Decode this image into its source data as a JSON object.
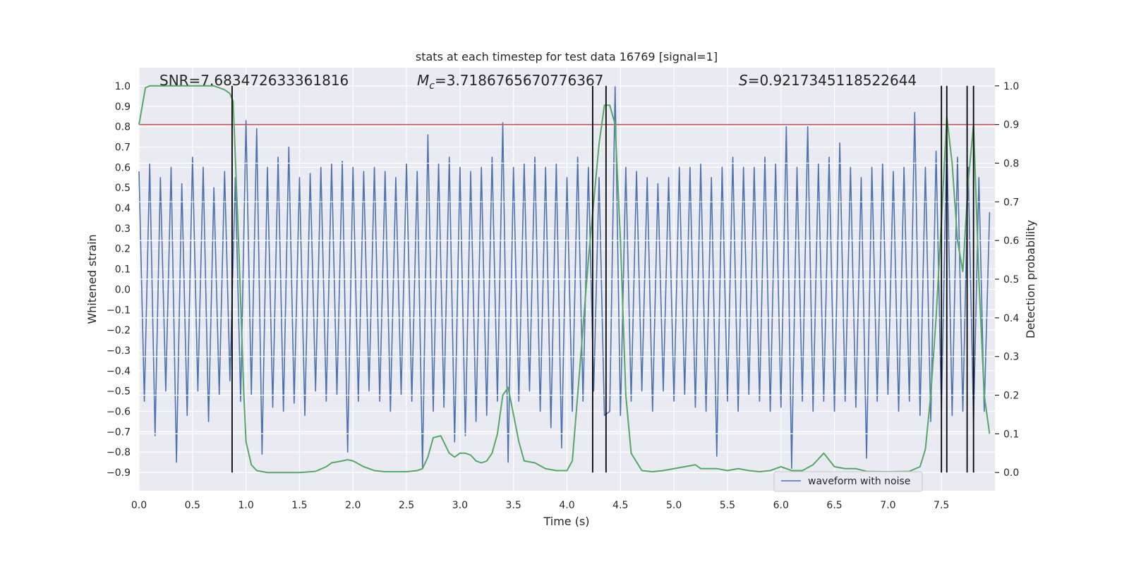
{
  "chart_data": {
    "type": "line",
    "title": "stats at each timestep for test data 16769 [signal=1]",
    "xlabel": "Time (s)",
    "ylabel": "Whitened strain",
    "y2label": "Detection probability",
    "xlim": [
      0,
      8
    ],
    "ylim": [
      -0.99,
      1.09
    ],
    "y2lim": [
      -0.047,
      1.047
    ],
    "xticks": [
      {
        "value": 0,
        "label": "0.0"
      },
      {
        "value": 0.5,
        "label": "0.5"
      },
      {
        "value": 1,
        "label": "1.0"
      },
      {
        "value": 1.5,
        "label": "1.5"
      },
      {
        "value": 2,
        "label": "2.0"
      },
      {
        "value": 2.5,
        "label": "2.5"
      },
      {
        "value": 3,
        "label": "3.0"
      },
      {
        "value": 3.5,
        "label": "3.5"
      },
      {
        "value": 4,
        "label": "4.0"
      },
      {
        "value": 4.5,
        "label": "4.5"
      },
      {
        "value": 5,
        "label": "5.0"
      },
      {
        "value": 5.5,
        "label": "5.5"
      },
      {
        "value": 6,
        "label": "6.0"
      },
      {
        "value": 6.5,
        "label": "6.5"
      },
      {
        "value": 7,
        "label": "7.0"
      },
      {
        "value": 7.5,
        "label": "7.5"
      }
    ],
    "yticks": [
      {
        "value": -0.9,
        "label": "−0.9"
      },
      {
        "value": -0.8,
        "label": "−0.8"
      },
      {
        "value": -0.7,
        "label": "−0.7"
      },
      {
        "value": -0.6,
        "label": "−0.6"
      },
      {
        "value": -0.5,
        "label": "−0.5"
      },
      {
        "value": -0.4,
        "label": "−0.4"
      },
      {
        "value": -0.3,
        "label": "−0.3"
      },
      {
        "value": -0.2,
        "label": "−0.2"
      },
      {
        "value": -0.1,
        "label": "−0.1"
      },
      {
        "value": 0,
        "label": "0.0"
      },
      {
        "value": 0.1,
        "label": "0.1"
      },
      {
        "value": 0.2,
        "label": "0.2"
      },
      {
        "value": 0.3,
        "label": "0.3"
      },
      {
        "value": 0.4,
        "label": "0.4"
      },
      {
        "value": 0.5,
        "label": "0.5"
      },
      {
        "value": 0.6,
        "label": "0.6"
      },
      {
        "value": 0.7,
        "label": "0.7"
      },
      {
        "value": 0.8,
        "label": "0.8"
      },
      {
        "value": 0.9,
        "label": "0.9"
      },
      {
        "value": 1,
        "label": "1.0"
      }
    ],
    "y2ticks": [
      {
        "value": 0,
        "label": "0.0"
      },
      {
        "value": 0.1,
        "label": "0.1"
      },
      {
        "value": 0.2,
        "label": "0.2"
      },
      {
        "value": 0.3,
        "label": "0.3"
      },
      {
        "value": 0.4,
        "label": "0.4"
      },
      {
        "value": 0.5,
        "label": "0.5"
      },
      {
        "value": 0.6,
        "label": "0.6"
      },
      {
        "value": 0.7,
        "label": "0.7"
      },
      {
        "value": 0.8,
        "label": "0.8"
      },
      {
        "value": 0.9,
        "label": "0.9"
      },
      {
        "value": 1,
        "label": "1.0"
      }
    ],
    "grid": true,
    "legend": "lower right",
    "annotations": [
      {
        "text": "SNR=7.683472633361816"
      },
      {
        "symbol": "M",
        "subscript": "c",
        "text": "=3.7186765670776367"
      },
      {
        "symbol": "S",
        "text": "=0.9217345118522644"
      }
    ],
    "series": [
      {
        "name": "waveform with noise",
        "color": "#4c72b0",
        "x": [
          0,
          0.05,
          0.1,
          0.15,
          0.2,
          0.25,
          0.3,
          0.35,
          0.4,
          0.45,
          0.5,
          0.55,
          0.6,
          0.65,
          0.7,
          0.75,
          0.8,
          0.85,
          0.9,
          0.95,
          1,
          1.05,
          1.1,
          1.15,
          1.2,
          1.25,
          1.3,
          1.35,
          1.4,
          1.45,
          1.5,
          1.55,
          1.6,
          1.65,
          1.7,
          1.75,
          1.8,
          1.85,
          1.9,
          1.95,
          2,
          2.05,
          2.1,
          2.15,
          2.2,
          2.25,
          2.3,
          2.35,
          2.4,
          2.45,
          2.5,
          2.55,
          2.6,
          2.65,
          2.7,
          2.75,
          2.8,
          2.85,
          2.9,
          2.95,
          3,
          3.05,
          3.1,
          3.15,
          3.2,
          3.25,
          3.3,
          3.35,
          3.4,
          3.45,
          3.5,
          3.55,
          3.6,
          3.65,
          3.7,
          3.75,
          3.8,
          3.85,
          3.9,
          3.95,
          4,
          4.05,
          4.1,
          4.15,
          4.2,
          4.25,
          4.3,
          4.35,
          4.4,
          4.45,
          4.5,
          4.55,
          4.6,
          4.65,
          4.7,
          4.75,
          4.8,
          4.85,
          4.9,
          4.95,
          5,
          5.05,
          5.1,
          5.15,
          5.2,
          5.25,
          5.3,
          5.35,
          5.4,
          5.45,
          5.5,
          5.55,
          5.6,
          5.65,
          5.7,
          5.75,
          5.8,
          5.85,
          5.9,
          5.95,
          6,
          6.05,
          6.1,
          6.15,
          6.2,
          6.25,
          6.3,
          6.35,
          6.4,
          6.45,
          6.5,
          6.55,
          6.6,
          6.65,
          6.7,
          6.75,
          6.8,
          6.85,
          6.9,
          6.95,
          7,
          7.05,
          7.1,
          7.15,
          7.2,
          7.25,
          7.3,
          7.35,
          7.4,
          7.45,
          7.5,
          7.55,
          7.6,
          7.65,
          7.7,
          7.75,
          7.8,
          7.85,
          7.9,
          7.95
        ],
        "values": [
          0.58,
          -0.55,
          0.62,
          -0.72,
          0.55,
          -0.5,
          0.6,
          -0.85,
          0.52,
          -0.62,
          0.65,
          -0.5,
          0.6,
          -0.65,
          0.5,
          -0.52,
          0.58,
          -0.45,
          0.55,
          -0.55,
          0.83,
          -0.52,
          0.79,
          -0.81,
          0.6,
          -0.58,
          0.65,
          -0.6,
          0.7,
          -0.56,
          0.55,
          -0.62,
          0.57,
          -0.5,
          0.6,
          -0.55,
          0.62,
          -0.52,
          0.63,
          -0.8,
          0.6,
          -0.55,
          0.58,
          -0.5,
          0.6,
          -0.55,
          0.58,
          -0.6,
          0.55,
          -0.52,
          0.62,
          -0.55,
          0.58,
          -0.88,
          0.76,
          -0.6,
          0.62,
          -0.58,
          0.65,
          -0.75,
          0.6,
          -0.72,
          0.58,
          -0.65,
          0.6,
          -0.62,
          0.65,
          -0.55,
          0.82,
          -0.85,
          0.6,
          -0.55,
          0.62,
          -0.5,
          0.65,
          -0.6,
          0.6,
          -0.68,
          0.62,
          -0.78,
          0.55,
          -0.6,
          0.65,
          -0.55,
          0.6,
          -0.5,
          0.55,
          -0.62,
          -0.6,
          1.0,
          -0.62,
          0.6,
          -0.55,
          0.58,
          -0.5,
          0.55,
          -0.6,
          0.52,
          -0.5,
          0.55,
          -0.55,
          0.6,
          -0.52,
          0.6,
          -0.58,
          0.62,
          -0.6,
          0.55,
          -0.82,
          0.6,
          -0.55,
          0.65,
          -0.6,
          0.6,
          -0.52,
          0.6,
          -0.55,
          0.65,
          -0.6,
          0.62,
          -0.58,
          0.8,
          -0.88,
          0.6,
          -0.55,
          0.8,
          -0.6,
          0.62,
          -0.55,
          0.65,
          -0.6,
          0.72,
          -0.55,
          0.6,
          -0.58,
          0.55,
          -0.83,
          0.6,
          -0.55,
          0.62,
          -0.52,
          0.58,
          -0.6,
          0.6,
          -0.55,
          0.87,
          -0.62,
          0.6,
          -0.65,
          0.68,
          -0.6,
          0.75,
          -0.62,
          0.65,
          -0.6,
          0.6,
          -0.65,
          0.55,
          -0.6,
          0.38
        ]
      },
      {
        "color": "#55a868",
        "axis": "y2",
        "x": [
          0,
          0.06,
          0.1,
          0.7,
          0.8,
          0.85,
          0.88,
          0.93,
          0.98,
          1,
          1.05,
          1.1,
          1.2,
          1.5,
          1.65,
          1.75,
          1.8,
          1.9,
          1.95,
          2,
          2.1,
          2.2,
          2.3,
          2.5,
          2.6,
          2.65,
          2.7,
          2.75,
          2.82,
          2.9,
          2.95,
          3,
          3.05,
          3.1,
          3.15,
          3.2,
          3.25,
          3.3,
          3.35,
          3.4,
          3.45,
          3.5,
          3.55,
          3.6,
          3.7,
          3.8,
          3.9,
          4,
          4.05,
          4.1,
          4.2,
          4.25,
          4.3,
          4.35,
          4.4,
          4.45,
          4.5,
          4.55,
          4.6,
          4.7,
          4.8,
          4.9,
          5,
          5.1,
          5.2,
          5.25,
          5.4,
          5.5,
          5.6,
          5.7,
          5.8,
          5.9,
          6,
          6.1,
          6.2,
          6.3,
          6.4,
          6.5,
          6.6,
          6.7,
          6.8,
          7,
          7.2,
          7.3,
          7.35,
          7.4,
          7.45,
          7.5,
          7.55,
          7.6,
          7.65,
          7.7,
          7.75,
          7.8,
          7.85,
          7.9,
          7.95
        ],
        "values": [
          0.9,
          0.995,
          1.0,
          1.0,
          0.99,
          0.98,
          0.96,
          0.6,
          0.2,
          0.08,
          0.02,
          0.005,
          0.0,
          0.0,
          0.003,
          0.015,
          0.025,
          0.03,
          0.033,
          0.03,
          0.015,
          0.005,
          0.002,
          0.002,
          0.005,
          0.01,
          0.04,
          0.09,
          0.095,
          0.05,
          0.04,
          0.05,
          0.05,
          0.045,
          0.03,
          0.025,
          0.03,
          0.05,
          0.1,
          0.2,
          0.22,
          0.15,
          0.08,
          0.03,
          0.025,
          0.01,
          0.005,
          0.005,
          0.03,
          0.2,
          0.55,
          0.7,
          0.85,
          0.95,
          0.95,
          0.9,
          0.6,
          0.2,
          0.05,
          0.005,
          0.002,
          0.005,
          0.01,
          0.015,
          0.02,
          0.01,
          0.01,
          0.005,
          0.01,
          0.005,
          0.002,
          0.005,
          0.015,
          0.005,
          0.005,
          0.02,
          0.05,
          0.015,
          0.01,
          0.01,
          0.003,
          0.002,
          0.003,
          0.015,
          0.06,
          0.2,
          0.4,
          0.65,
          0.92,
          0.8,
          0.6,
          0.52,
          0.75,
          0.9,
          0.5,
          0.2,
          0.1
        ]
      }
    ],
    "hlines": [
      {
        "y": 0.9,
        "axis": "y2",
        "color": "#c44e52"
      }
    ],
    "vlines": {
      "x": [
        0.87,
        4.24,
        4.365,
        7.5,
        7.55,
        7.74,
        7.8
      ],
      "ymin": 0,
      "ymax": 1,
      "axis": "y2",
      "color": "#000000"
    }
  }
}
